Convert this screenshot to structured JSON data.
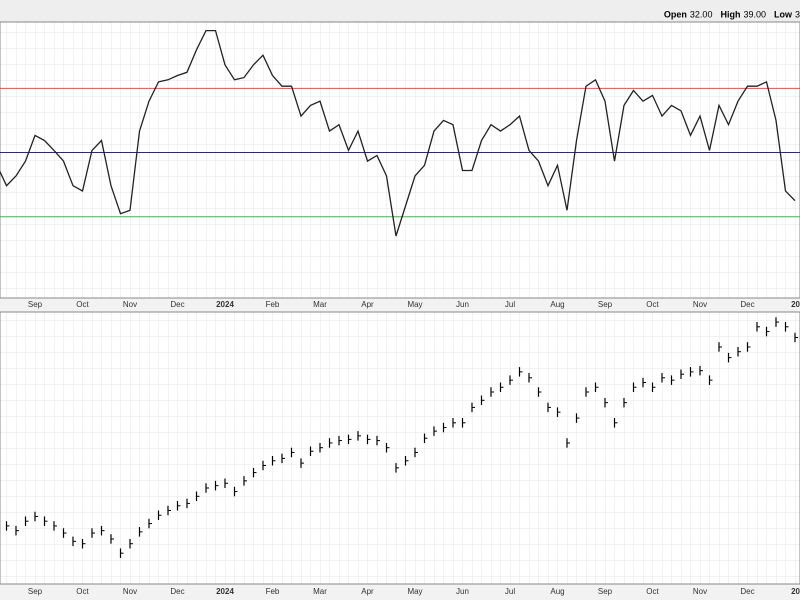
{
  "chart_data": [
    {
      "type": "line",
      "header": [
        {
          "label": "Open",
          "value": "32.00"
        },
        {
          "label": "High",
          "value": "39.00"
        },
        {
          "label": "Low",
          "value": "3"
        }
      ],
      "categories": [
        null,
        null,
        null,
        null,
        "Sep",
        null,
        null,
        null,
        null,
        "Oct",
        null,
        null,
        null,
        null,
        "Nov",
        null,
        null,
        null,
        null,
        "Dec",
        null,
        null,
        null,
        null,
        "2024",
        null,
        null,
        null,
        null,
        "Feb",
        null,
        null,
        null,
        null,
        "Mar",
        null,
        null,
        null,
        null,
        "Apr",
        null,
        null,
        null,
        null,
        "May",
        null,
        null,
        null,
        null,
        "Jun",
        null,
        null,
        null,
        null,
        "Jul",
        null,
        null,
        null,
        null,
        "Aug",
        null,
        null,
        null,
        null,
        "Sep",
        null,
        null,
        null,
        null,
        "Oct",
        null,
        null,
        null,
        null,
        "Nov",
        null,
        null,
        null,
        null,
        "Dec",
        null,
        null,
        null,
        null,
        "20"
      ],
      "values": [
        44,
        34.5,
        39,
        46,
        58,
        55.6,
        51,
        46,
        34.5,
        32,
        51,
        55.6,
        34.5,
        21.4,
        23,
        60,
        74,
        83,
        84,
        86,
        87.5,
        98,
        107,
        107,
        91,
        84,
        85,
        91,
        95.5,
        86,
        81,
        81,
        67,
        72,
        74,
        60,
        63,
        51,
        60,
        46,
        48.6,
        39,
        11,
        25,
        39,
        44,
        60,
        65,
        63,
        41.6,
        41.6,
        55.6,
        63,
        60,
        63,
        67,
        51,
        46,
        34.5,
        44,
        23,
        55.6,
        81,
        84,
        74,
        46,
        72,
        79,
        74,
        76.7,
        67,
        72,
        69.5,
        58,
        67,
        51,
        72,
        63,
        74,
        81,
        81,
        83,
        65,
        32,
        27.5
      ],
      "color": "#222222",
      "ylim": [
        -18,
        111
      ],
      "reference_lines": [
        {
          "value": 80,
          "color": "#d9534f"
        },
        {
          "value": 50,
          "color": "#2b2b6e"
        },
        {
          "value": 20,
          "color": "#4caf50"
        }
      ]
    },
    {
      "type": "ohlc",
      "categories": [
        null,
        null,
        null,
        null,
        "Sep",
        null,
        null,
        null,
        null,
        "Oct",
        null,
        null,
        null,
        null,
        "Nov",
        null,
        null,
        null,
        null,
        "Dec",
        null,
        null,
        null,
        null,
        "2024",
        null,
        null,
        null,
        null,
        "Feb",
        null,
        null,
        null,
        null,
        "Mar",
        null,
        null,
        null,
        null,
        "Apr",
        null,
        null,
        null,
        null,
        "May",
        null,
        null,
        null,
        null,
        "Jun",
        null,
        null,
        null,
        null,
        "Jul",
        null,
        null,
        null,
        null,
        "Aug",
        null,
        null,
        null,
        null,
        "Sep",
        null,
        null,
        null,
        null,
        "Oct",
        null,
        null,
        null,
        null,
        "Nov",
        null,
        null,
        null,
        null,
        "Dec",
        null,
        null,
        null,
        null,
        "20"
      ],
      "values": [
        4340,
        4360,
        4320,
        4400,
        4440,
        4400,
        4360,
        4300,
        4230,
        4210,
        4300,
        4320,
        4250,
        4130,
        4210,
        4310,
        4380,
        4450,
        4490,
        4530,
        4550,
        4610,
        4680,
        4700,
        4720,
        4650,
        4740,
        4810,
        4870,
        4910,
        4930,
        4980,
        4890,
        4990,
        5020,
        5060,
        5080,
        5090,
        5120,
        5090,
        5080,
        5020,
        4850,
        4910,
        4980,
        5100,
        5160,
        5190,
        5230,
        5230,
        5360,
        5420,
        5490,
        5530,
        5590,
        5660,
        5610,
        5490,
        5360,
        5320,
        5060,
        5270,
        5490,
        5530,
        5400,
        5230,
        5400,
        5530,
        5570,
        5530,
        5610,
        5590,
        5640,
        5660,
        5670,
        5590,
        5870,
        5780,
        5830,
        5870,
        6040,
        6000,
        6080,
        6040,
        5950
      ],
      "high": [
        4380,
        4400,
        4360,
        4440,
        4480,
        4440,
        4400,
        4340,
        4270,
        4250,
        4340,
        4360,
        4290,
        4170,
        4250,
        4350,
        4420,
        4490,
        4530,
        4570,
        4590,
        4650,
        4720,
        4740,
        4760,
        4690,
        4780,
        4850,
        4910,
        4950,
        4970,
        5020,
        4930,
        5030,
        5060,
        5100,
        5120,
        5130,
        5160,
        5130,
        5120,
        5060,
        4890,
        4950,
        5020,
        5140,
        5200,
        5230,
        5270,
        5270,
        5400,
        5460,
        5530,
        5570,
        5630,
        5700,
        5650,
        5530,
        5400,
        5360,
        5100,
        5310,
        5530,
        5570,
        5440,
        5270,
        5440,
        5570,
        5610,
        5570,
        5650,
        5630,
        5680,
        5700,
        5710,
        5630,
        5910,
        5820,
        5870,
        5910,
        6080,
        6040,
        6120,
        6080,
        5990
      ],
      "low": [
        4300,
        4320,
        4280,
        4360,
        4400,
        4360,
        4320,
        4260,
        4190,
        4170,
        4260,
        4280,
        4210,
        4090,
        4170,
        4270,
        4340,
        4410,
        4450,
        4490,
        4510,
        4570,
        4640,
        4660,
        4680,
        4610,
        4700,
        4770,
        4830,
        4870,
        4890,
        4940,
        4850,
        4950,
        4980,
        5020,
        5040,
        5050,
        5080,
        5050,
        5040,
        4980,
        4810,
        4870,
        4940,
        5060,
        5120,
        5150,
        5190,
        5190,
        5320,
        5380,
        5450,
        5490,
        5550,
        5620,
        5570,
        5450,
        5320,
        5280,
        5020,
        5230,
        5450,
        5490,
        5360,
        5190,
        5360,
        5490,
        5530,
        5490,
        5570,
        5550,
        5600,
        5620,
        5630,
        5550,
        5830,
        5740,
        5790,
        5830,
        6000,
        5960,
        6040,
        6000,
        5910
      ],
      "color": "#000000",
      "ylim": [
        3870,
        6165
      ]
    }
  ]
}
